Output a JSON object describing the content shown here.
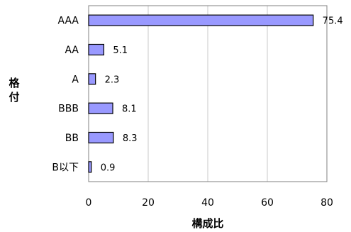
{
  "chart_data": {
    "type": "bar",
    "orientation": "horizontal",
    "categories": [
      "AAA",
      "AA",
      "A",
      "BBB",
      "BB",
      "B以下"
    ],
    "values": [
      75.4,
      5.1,
      2.3,
      8.1,
      8.3,
      0.9
    ],
    "value_labels": [
      "75.4",
      "5.1",
      "2.3",
      "8.1",
      "8.3",
      "0.9"
    ],
    "xlabel": "構成比",
    "ylabel": "格付",
    "xlim": [
      0,
      80
    ],
    "x_ticks": [
      "0",
      "20",
      "40",
      "60",
      "80"
    ],
    "x_tick_values": [
      0,
      20,
      40,
      60,
      80
    ],
    "grid": "vertical",
    "legend": "none",
    "bar_color": "#9999ff",
    "bar_border_color": "#000000",
    "grid_color": "#c8c8c8",
    "plot_border_color": "#808080"
  }
}
